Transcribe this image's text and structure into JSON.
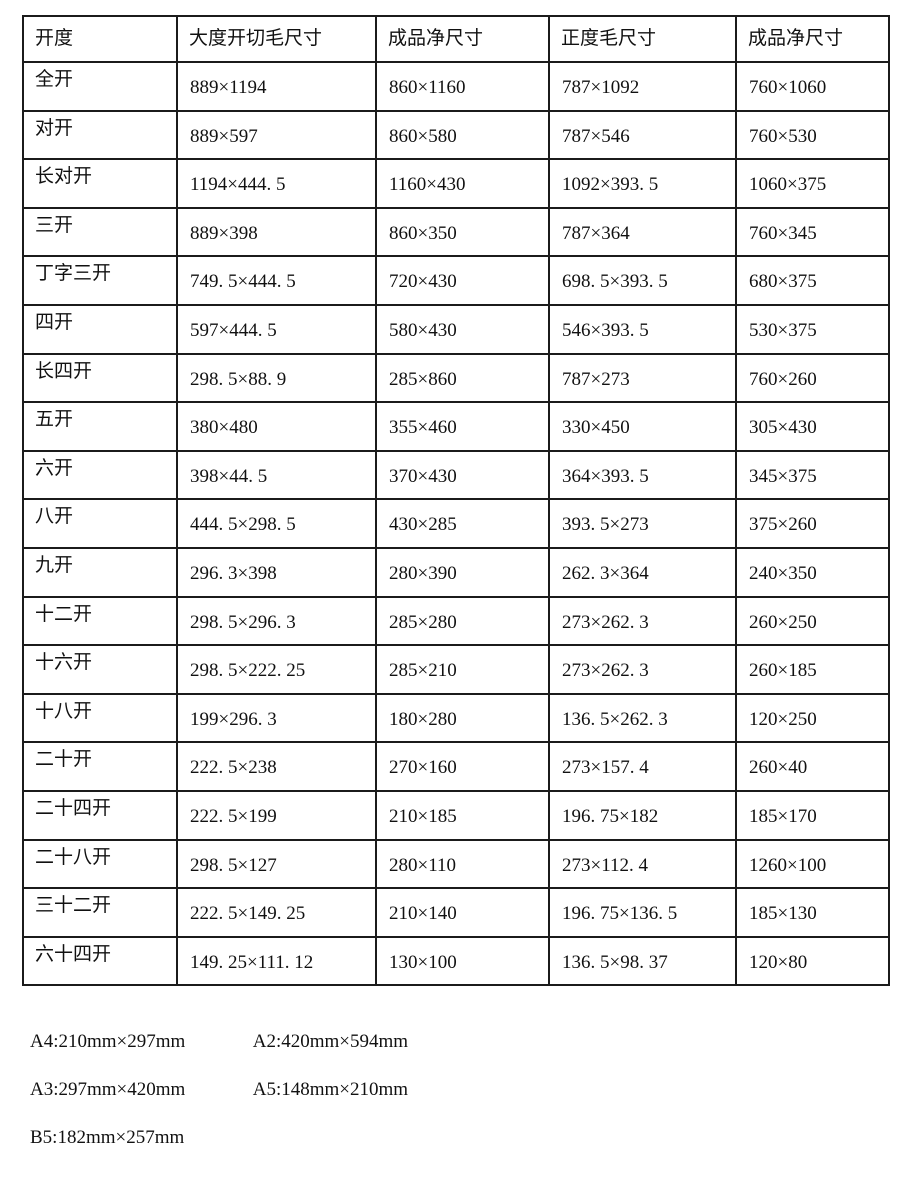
{
  "table": {
    "headers": [
      "开度",
      "大度开切毛尺寸",
      "成品净尺寸",
      "正度毛尺寸",
      "成品净尺寸"
    ],
    "rows": [
      [
        "全开",
        "889×1194",
        "860×1160",
        "787×1092",
        "760×1060"
      ],
      [
        "对开",
        "889×597",
        "860×580",
        "787×546",
        "760×530"
      ],
      [
        "长对开",
        "1194×444. 5",
        "1160×430",
        "1092×393. 5",
        "1060×375"
      ],
      [
        "三开",
        "889×398",
        "860×350",
        "787×364",
        "760×345"
      ],
      [
        "丁字三开",
        "749. 5×444. 5",
        "720×430",
        "698. 5×393. 5",
        "680×375"
      ],
      [
        "四开",
        "597×444. 5",
        "580×430",
        "546×393. 5",
        "530×375"
      ],
      [
        "长四开",
        "298. 5×88. 9",
        "285×860",
        "787×273",
        "760×260"
      ],
      [
        "五开",
        "380×480",
        "355×460",
        "330×450",
        "305×430"
      ],
      [
        "六开",
        "398×44. 5",
        "370×430",
        "364×393. 5",
        "345×375"
      ],
      [
        "八开",
        "444. 5×298. 5",
        "430×285",
        "393. 5×273",
        "375×260"
      ],
      [
        "九开",
        "296. 3×398",
        "280×390",
        "262. 3×364",
        "240×350"
      ],
      [
        "十二开",
        "298. 5×296. 3",
        "285×280",
        "273×262. 3",
        "260×250"
      ],
      [
        "十六开",
        "298. 5×222. 25",
        "285×210",
        "273×262. 3",
        "260×185"
      ],
      [
        "十八开",
        "199×296. 3",
        "180×280",
        "136. 5×262. 3",
        "120×250"
      ],
      [
        "二十开",
        "222. 5×238",
        "270×160",
        "273×157. 4",
        "260×40"
      ],
      [
        "二十四开",
        "222. 5×199",
        "210×185",
        "196. 75×182",
        "185×170"
      ],
      [
        "二十八开",
        "298. 5×127",
        "280×110",
        "273×112. 4",
        "1260×100"
      ],
      [
        "三十二开",
        "222. 5×149. 25",
        "210×140",
        "196. 75×136. 5",
        "185×130"
      ],
      [
        "六十四开",
        "149. 25×111. 12",
        "130×100",
        "136. 5×98. 37",
        "120×80"
      ]
    ]
  },
  "notes": [
    "A4:210mm×297mm",
    "A2:420mm×594mm",
    "A3:297mm×420mm",
    "A5:148mm×210mm",
    "B5:182mm×257mm"
  ],
  "colors": {
    "background": "#ffffff",
    "text": "#111111",
    "border": "#1b1b1b"
  }
}
